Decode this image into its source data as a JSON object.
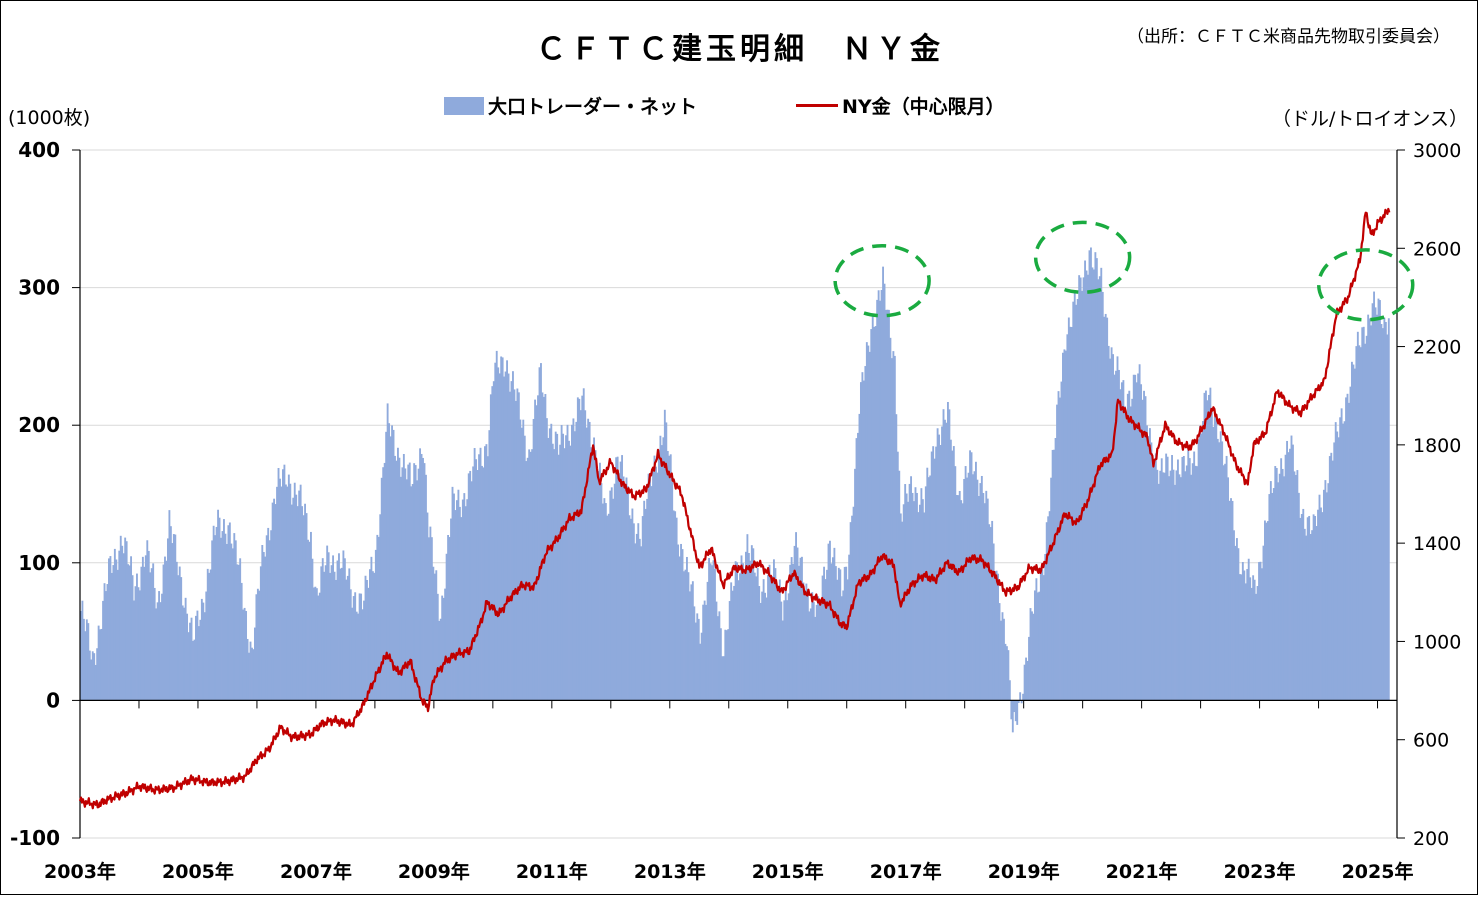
{
  "title": "ＣＦＴＣ建玉明細　ＮＹ金",
  "source": "（出所：ＣＦＴＣ米商品先物取引委員会）",
  "unit_left": "(1000枚)",
  "unit_right": "（ドル/トロイオンス）",
  "legend": {
    "bar_label": "大口トレーダー・ネット",
    "line_label": "NY金（中心限月）"
  },
  "colors": {
    "bars": "#8faadc",
    "line": "#c00000",
    "highlight_circles": "#1aab40"
  },
  "chart_data": {
    "type": "bar",
    "title": "ＣＦＴＣ建玉明細　ＮＹ金",
    "x_tick_labels": [
      "2003年",
      "2005年",
      "2007年",
      "2009年",
      "2011年",
      "2013年",
      "2015年",
      "2017年",
      "2019年",
      "2021年",
      "2023年",
      "2025年"
    ],
    "left_axis": {
      "ylabel": "(1000枚)",
      "ylim": [
        -100,
        400
      ],
      "ticks": [
        -100,
        0,
        100,
        200,
        300,
        400
      ]
    },
    "right_axis": {
      "ylabel": "（ドル/トロイオンス）",
      "ylim": [
        200,
        3000
      ],
      "ticks": [
        200,
        600,
        1000,
        1400,
        1800,
        2200,
        2600,
        3000
      ]
    },
    "grid": "horizontal",
    "legend_position": "top-center",
    "highlight_years": [
      2016.6,
      2020.0,
      2024.8
    ],
    "series": [
      {
        "name": "大口トレーダー・ネット",
        "kind": "bar",
        "axis": "left",
        "points": [
          [
            2003.0,
            65
          ],
          [
            2003.2,
            30
          ],
          [
            2003.5,
            95
          ],
          [
            2003.7,
            120
          ],
          [
            2003.9,
            80
          ],
          [
            2004.1,
            110
          ],
          [
            2004.3,
            70
          ],
          [
            2004.5,
            125
          ],
          [
            2004.7,
            90
          ],
          [
            2004.9,
            40
          ],
          [
            2005.1,
            80
          ],
          [
            2005.3,
            125
          ],
          [
            2005.5,
            130
          ],
          [
            2005.7,
            90
          ],
          [
            2005.9,
            35
          ],
          [
            2006.1,
            110
          ],
          [
            2006.3,
            150
          ],
          [
            2006.5,
            165
          ],
          [
            2006.7,
            145
          ],
          [
            2006.9,
            120
          ],
          [
            2007.0,
            75
          ],
          [
            2007.2,
            105
          ],
          [
            2007.4,
            100
          ],
          [
            2007.6,
            80
          ],
          [
            2007.8,
            70
          ],
          [
            2008.0,
            110
          ],
          [
            2008.2,
            200
          ],
          [
            2008.4,
            180
          ],
          [
            2008.6,
            155
          ],
          [
            2008.8,
            190
          ],
          [
            2008.9,
            120
          ],
          [
            2009.1,
            65
          ],
          [
            2009.3,
            140
          ],
          [
            2009.5,
            150
          ],
          [
            2009.7,
            170
          ],
          [
            2009.9,
            190
          ],
          [
            2010.0,
            235
          ],
          [
            2010.2,
            250
          ],
          [
            2010.4,
            215
          ],
          [
            2010.6,
            180
          ],
          [
            2010.8,
            235
          ],
          [
            2010.9,
            210
          ],
          [
            2011.1,
            180
          ],
          [
            2011.3,
            200
          ],
          [
            2011.5,
            215
          ],
          [
            2011.7,
            190
          ],
          [
            2011.9,
            130
          ],
          [
            2012.1,
            180
          ],
          [
            2012.3,
            140
          ],
          [
            2012.5,
            120
          ],
          [
            2012.7,
            170
          ],
          [
            2012.9,
            200
          ],
          [
            2013.1,
            130
          ],
          [
            2013.3,
            85
          ],
          [
            2013.5,
            55
          ],
          [
            2013.7,
            100
          ],
          [
            2013.9,
            40
          ],
          [
            2014.1,
            90
          ],
          [
            2014.3,
            115
          ],
          [
            2014.5,
            80
          ],
          [
            2014.7,
            95
          ],
          [
            2014.9,
            70
          ],
          [
            2015.1,
            110
          ],
          [
            2015.3,
            85
          ],
          [
            2015.5,
            60
          ],
          [
            2015.7,
            120
          ],
          [
            2015.9,
            75
          ],
          [
            2016.0,
            100
          ],
          [
            2016.2,
            210
          ],
          [
            2016.4,
            275
          ],
          [
            2016.6,
            300
          ],
          [
            2016.8,
            250
          ],
          [
            2016.9,
            130
          ],
          [
            2017.1,
            160
          ],
          [
            2017.3,
            140
          ],
          [
            2017.5,
            195
          ],
          [
            2017.7,
            205
          ],
          [
            2017.9,
            150
          ],
          [
            2018.1,
            170
          ],
          [
            2018.3,
            160
          ],
          [
            2018.5,
            100
          ],
          [
            2018.7,
            45
          ],
          [
            2018.8,
            -30
          ],
          [
            2018.9,
            -5
          ],
          [
            2019.1,
            55
          ],
          [
            2019.3,
            95
          ],
          [
            2019.5,
            180
          ],
          [
            2019.7,
            270
          ],
          [
            2019.9,
            290
          ],
          [
            2020.1,
            330
          ],
          [
            2020.3,
            300
          ],
          [
            2020.5,
            250
          ],
          [
            2020.7,
            215
          ],
          [
            2020.9,
            240
          ],
          [
            2021.1,
            200
          ],
          [
            2021.3,
            160
          ],
          [
            2021.5,
            175
          ],
          [
            2021.7,
            165
          ],
          [
            2021.9,
            180
          ],
          [
            2022.1,
            220
          ],
          [
            2022.3,
            200
          ],
          [
            2022.5,
            140
          ],
          [
            2022.7,
            95
          ],
          [
            2022.9,
            80
          ],
          [
            2023.1,
            130
          ],
          [
            2023.3,
            170
          ],
          [
            2023.5,
            185
          ],
          [
            2023.7,
            140
          ],
          [
            2023.9,
            120
          ],
          [
            2024.1,
            160
          ],
          [
            2024.3,
            190
          ],
          [
            2024.5,
            230
          ],
          [
            2024.7,
            260
          ],
          [
            2024.9,
            290
          ],
          [
            2025.1,
            270
          ],
          [
            2025.2,
            290
          ]
        ]
      },
      {
        "name": "NY金（中心限月）",
        "kind": "line",
        "axis": "right",
        "points": [
          [
            2003.0,
            350
          ],
          [
            2003.3,
            335
          ],
          [
            2003.5,
            360
          ],
          [
            2003.8,
            385
          ],
          [
            2004.0,
            410
          ],
          [
            2004.3,
            395
          ],
          [
            2004.6,
            405
          ],
          [
            2004.9,
            440
          ],
          [
            2005.2,
            425
          ],
          [
            2005.5,
            430
          ],
          [
            2005.8,
            450
          ],
          [
            2006.0,
            520
          ],
          [
            2006.2,
            560
          ],
          [
            2006.4,
            650
          ],
          [
            2006.6,
            610
          ],
          [
            2006.9,
            620
          ],
          [
            2007.1,
            665
          ],
          [
            2007.3,
            680
          ],
          [
            2007.6,
            660
          ],
          [
            2007.8,
            740
          ],
          [
            2008.0,
            850
          ],
          [
            2008.2,
            950
          ],
          [
            2008.4,
            870
          ],
          [
            2008.6,
            920
          ],
          [
            2008.8,
            760
          ],
          [
            2008.9,
            730
          ],
          [
            2009.0,
            850
          ],
          [
            2009.2,
            920
          ],
          [
            2009.4,
            950
          ],
          [
            2009.6,
            960
          ],
          [
            2009.8,
            1080
          ],
          [
            2009.9,
            1160
          ],
          [
            2010.1,
            1110
          ],
          [
            2010.3,
            1180
          ],
          [
            2010.5,
            1230
          ],
          [
            2010.7,
            1220
          ],
          [
            2010.9,
            1360
          ],
          [
            2011.1,
            1420
          ],
          [
            2011.3,
            1500
          ],
          [
            2011.5,
            1530
          ],
          [
            2011.7,
            1800
          ],
          [
            2011.8,
            1650
          ],
          [
            2012.0,
            1730
          ],
          [
            2012.2,
            1640
          ],
          [
            2012.4,
            1590
          ],
          [
            2012.6,
            1620
          ],
          [
            2012.8,
            1760
          ],
          [
            2013.0,
            1680
          ],
          [
            2013.2,
            1600
          ],
          [
            2013.4,
            1400
          ],
          [
            2013.5,
            1300
          ],
          [
            2013.7,
            1380
          ],
          [
            2013.9,
            1230
          ],
          [
            2014.1,
            1300
          ],
          [
            2014.3,
            1290
          ],
          [
            2014.5,
            1320
          ],
          [
            2014.7,
            1270
          ],
          [
            2014.9,
            1200
          ],
          [
            2015.1,
            1280
          ],
          [
            2015.3,
            1200
          ],
          [
            2015.5,
            1170
          ],
          [
            2015.7,
            1150
          ],
          [
            2015.9,
            1070
          ],
          [
            2016.0,
            1060
          ],
          [
            2016.2,
            1240
          ],
          [
            2016.4,
            1270
          ],
          [
            2016.6,
            1350
          ],
          [
            2016.8,
            1310
          ],
          [
            2016.9,
            1150
          ],
          [
            2017.1,
            1230
          ],
          [
            2017.3,
            1270
          ],
          [
            2017.5,
            1250
          ],
          [
            2017.7,
            1320
          ],
          [
            2017.9,
            1280
          ],
          [
            2018.1,
            1340
          ],
          [
            2018.3,
            1330
          ],
          [
            2018.5,
            1270
          ],
          [
            2018.7,
            1200
          ],
          [
            2018.9,
            1220
          ],
          [
            2019.1,
            1300
          ],
          [
            2019.3,
            1290
          ],
          [
            2019.5,
            1400
          ],
          [
            2019.7,
            1520
          ],
          [
            2019.9,
            1480
          ],
          [
            2020.1,
            1580
          ],
          [
            2020.3,
            1720
          ],
          [
            2020.5,
            1760
          ],
          [
            2020.6,
            1980
          ],
          [
            2020.8,
            1900
          ],
          [
            2020.9,
            1880
          ],
          [
            2021.1,
            1830
          ],
          [
            2021.2,
            1720
          ],
          [
            2021.4,
            1880
          ],
          [
            2021.6,
            1810
          ],
          [
            2021.8,
            1790
          ],
          [
            2021.9,
            1810
          ],
          [
            2022.1,
            1900
          ],
          [
            2022.2,
            1950
          ],
          [
            2022.4,
            1850
          ],
          [
            2022.6,
            1720
          ],
          [
            2022.8,
            1640
          ],
          [
            2022.9,
            1800
          ],
          [
            2023.1,
            1850
          ],
          [
            2023.3,
            2020
          ],
          [
            2023.5,
            1960
          ],
          [
            2023.7,
            1930
          ],
          [
            2023.9,
            2000
          ],
          [
            2024.1,
            2060
          ],
          [
            2024.3,
            2330
          ],
          [
            2024.5,
            2400
          ],
          [
            2024.7,
            2550
          ],
          [
            2024.8,
            2750
          ],
          [
            2024.9,
            2650
          ],
          [
            2025.0,
            2700
          ],
          [
            2025.2,
            2760
          ]
        ]
      }
    ]
  }
}
